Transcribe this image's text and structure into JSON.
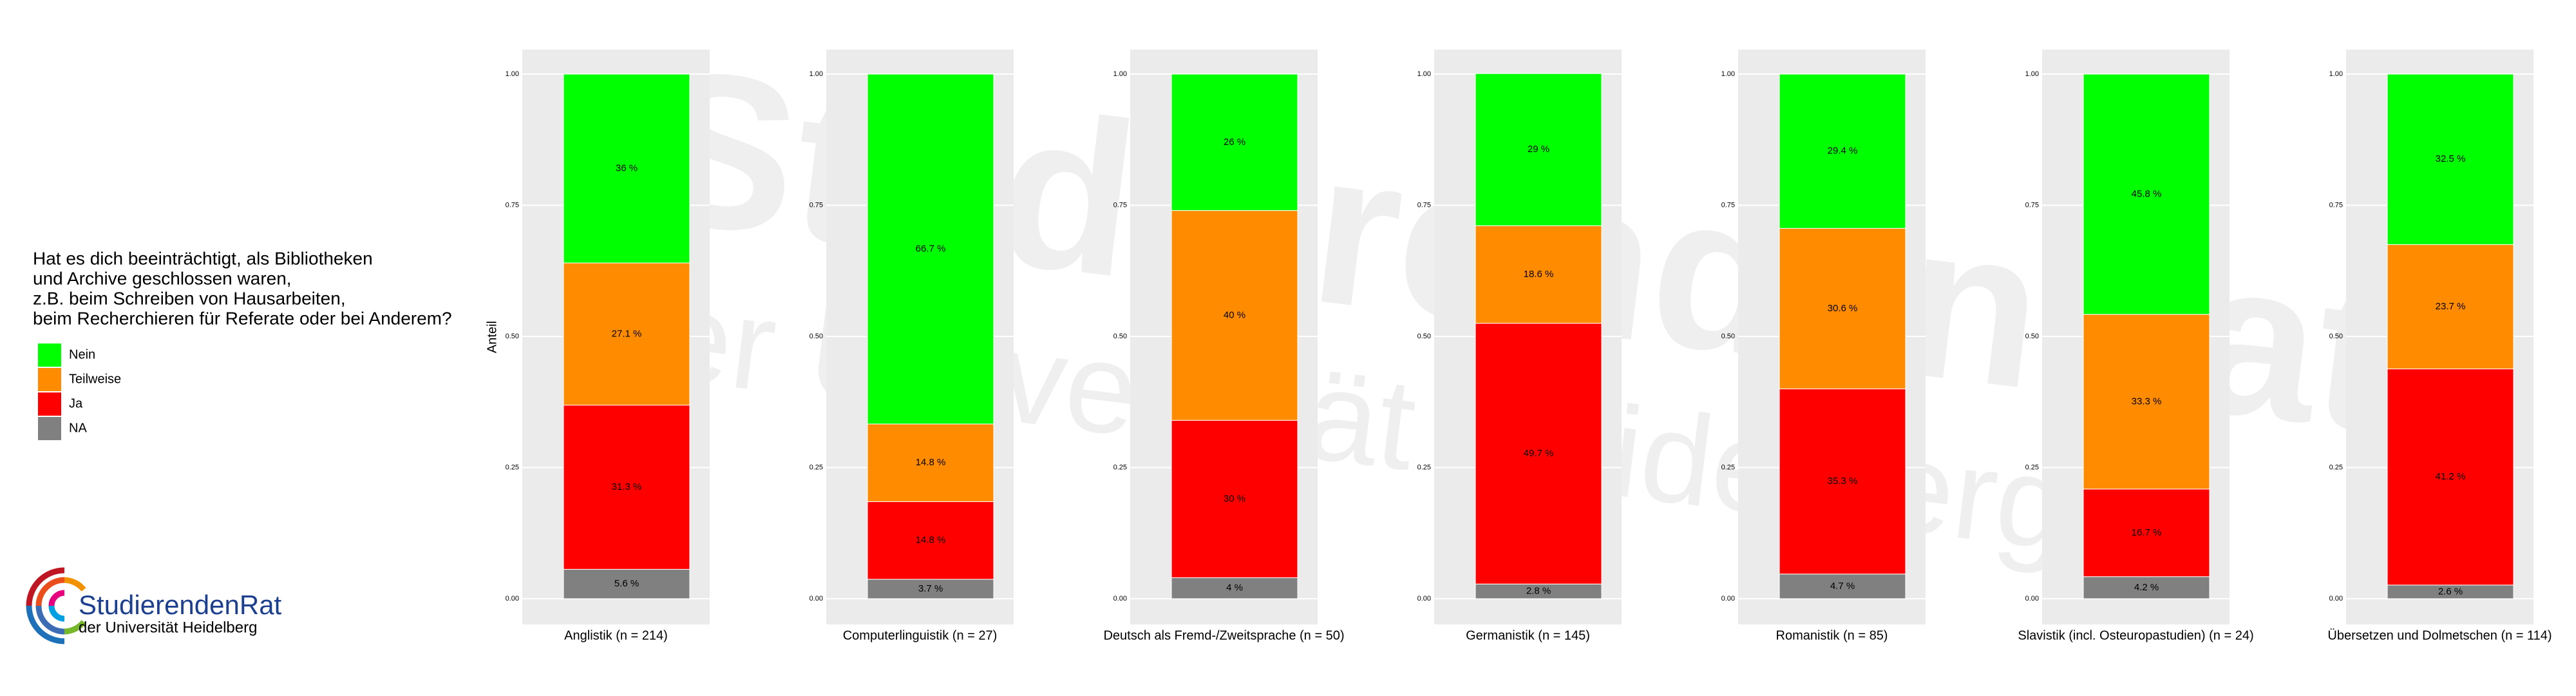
{
  "chart_data": {
    "type": "bar",
    "stacked": true,
    "ylabel": "Anteil",
    "legend_title": [
      "Hat es dich beeinträchtigt, als Bibliotheken",
      "und Archive geschlossen waren,",
      "z.B. beim Schreiben von Hausarbeiten,",
      "beim Recherchieren für Referate oder bei Anderem?"
    ],
    "categories": [
      "Anglistik (n = 214)",
      "Computerlinguistik (n = 27)",
      "Deutsch als Fremd-/Zweitsprache (n = 50)",
      "Germanistik (n = 145)",
      "Romanistik (n = 85)",
      "Slavistik (incl. Osteuropastudien) (n = 24)",
      "Übersetzen und Dolmetschen (n = 114)"
    ],
    "series": [
      {
        "name": "Nein",
        "color": "#00ff00",
        "values": [
          0.36,
          0.667,
          0.26,
          0.29,
          0.294,
          0.458,
          0.325
        ],
        "value_labels": [
          "36 %",
          "66.7 %",
          "26 %",
          "29 %",
          "29.4 %",
          "45.8 %",
          "32.5 %"
        ]
      },
      {
        "name": "Teilweise",
        "color": "#ff8c00",
        "values": [
          0.271,
          0.148,
          0.4,
          0.186,
          0.306,
          0.333,
          0.237
        ],
        "value_labels": [
          "27.1 %",
          "14.8 %",
          "40 %",
          "18.6 %",
          "30.6 %",
          "33.3 %",
          "23.7 %"
        ]
      },
      {
        "name": "Ja",
        "color": "#ff0000",
        "values": [
          0.313,
          0.148,
          0.3,
          0.497,
          0.353,
          0.167,
          0.412
        ],
        "value_labels": [
          "31.3 %",
          "14.8 %",
          "30 %",
          "49.7 %",
          "35.3 %",
          "16.7 %",
          "41.2 %"
        ]
      },
      {
        "name": "NA",
        "color": "#808080",
        "values": [
          0.056,
          0.037,
          0.04,
          0.028,
          0.047,
          0.042,
          0.026
        ],
        "value_labels": [
          "5.6 %",
          "3.7 %",
          "4 %",
          "2.8 %",
          "4.7 %",
          "4.2 %",
          "2.6 %"
        ]
      }
    ],
    "ylim": [
      0,
      1
    ],
    "yticks": [
      {
        "value": 0,
        "label": "0.00"
      },
      {
        "value": 0.25,
        "label": "0.25"
      },
      {
        "value": 0.5,
        "label": "0.50"
      },
      {
        "value": 0.75,
        "label": "0.75"
      },
      {
        "value": 1,
        "label": "1.00"
      }
    ],
    "grid": true
  },
  "logo": {
    "name": "StudierendenRat",
    "subtitle": "der Universität Heidelberg"
  }
}
